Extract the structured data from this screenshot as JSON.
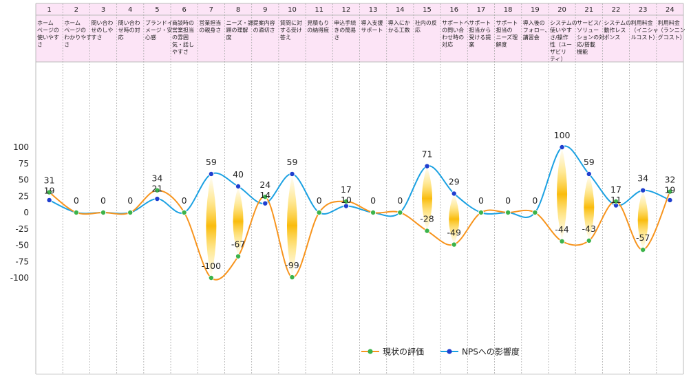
{
  "chart_data": {
    "type": "line",
    "categories": [
      {
        "num": "1",
        "label": [
          "ホーム",
          "ページの",
          "使いやす",
          "さ"
        ]
      },
      {
        "num": "2",
        "label": [
          "ホーム",
          "ページの",
          "わかりやす",
          "さ"
        ]
      },
      {
        "num": "3",
        "label": [
          "問い合わ",
          "せのしや",
          "すさ"
        ]
      },
      {
        "num": "4",
        "label": [
          "問い合わ",
          "せ時の対",
          "応"
        ]
      },
      {
        "num": "5",
        "label": [
          "ブランドイ",
          "メージ・安",
          "心感"
        ]
      },
      {
        "num": "6",
        "label": [
          "商談時の",
          "営業担当",
          "の雰囲",
          "気・話し",
          "やすさ"
        ]
      },
      {
        "num": "7",
        "label": [
          "営業担当",
          "の親身さ"
        ]
      },
      {
        "num": "8",
        "label": [
          "ニーズ・課",
          "題の理解",
          "度"
        ]
      },
      {
        "num": "9",
        "label": [
          "提案内容",
          "の適切さ"
        ]
      },
      {
        "num": "10",
        "label": [
          "質問に対",
          "する受け",
          "答え"
        ]
      },
      {
        "num": "11",
        "label": [
          "見積もり",
          "の納得度"
        ]
      },
      {
        "num": "12",
        "label": [
          "申込手続",
          "きの簡易",
          "さ"
        ]
      },
      {
        "num": "13",
        "label": [
          "導入支援",
          "サポート"
        ]
      },
      {
        "num": "14",
        "label": [
          "導入にか",
          "かる工数"
        ]
      },
      {
        "num": "15",
        "label": [
          "社内の反",
          "応"
        ]
      },
      {
        "num": "16",
        "label": [
          "サポートへ",
          "の問い合",
          "わせ時の",
          "対応"
        ]
      },
      {
        "num": "17",
        "label": [
          "サポート",
          "担当から",
          "受ける提",
          "案"
        ]
      },
      {
        "num": "18",
        "label": [
          "サポート",
          "担当の",
          "ニーズ理",
          "解度"
        ]
      },
      {
        "num": "19",
        "label": [
          "導入後の",
          "フォロー、",
          "講習会"
        ]
      },
      {
        "num": "20",
        "label": [
          "システムの",
          "使いやす",
          "さ/操作",
          "性（ユー",
          "ザビリ",
          "ティ）"
        ]
      },
      {
        "num": "21",
        "label": [
          "サービス/",
          "ソリュー",
          "ションの対",
          "応/搭載",
          "機能"
        ]
      },
      {
        "num": "22",
        "label": [
          "システムの",
          "動作レス",
          "ポンス"
        ]
      },
      {
        "num": "23",
        "label": [
          "利用料金",
          "（イニシャ",
          "ルコスト）"
        ]
      },
      {
        "num": "24",
        "label": [
          "利用料金",
          "（ランニン",
          "グコスト）"
        ]
      }
    ],
    "series": [
      {
        "name": "現状の評価",
        "color": "#f7941d",
        "marker": "#3cb34a",
        "values": [
          31,
          0,
          0,
          0,
          34,
          0,
          -100,
          -67,
          24,
          -99,
          0,
          17,
          0,
          0,
          -28,
          -49,
          0,
          0,
          0,
          -44,
          -43,
          17,
          -57,
          32
        ]
      },
      {
        "name": "NPSへの影響度",
        "color": "#1ba1e2",
        "marker": "#1f3fcf",
        "values": [
          19,
          0,
          0,
          0,
          21,
          0,
          59,
          40,
          14,
          59,
          0,
          10,
          0,
          0,
          71,
          29,
          0,
          0,
          0,
          100,
          59,
          11,
          34,
          19
        ]
      }
    ],
    "yticks": [
      100,
      75,
      50,
      25,
      0,
      -25,
      -50,
      -75,
      -100
    ],
    "ylim": [
      -100,
      100
    ],
    "legend": "bottom-right",
    "header_bg": "#fce4f6",
    "grid_color": "#aaaaaa"
  }
}
